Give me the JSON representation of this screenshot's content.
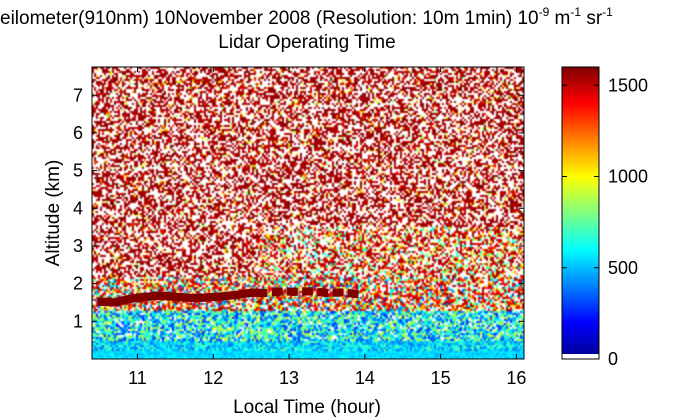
{
  "chart_data": {
    "type": "heatmap",
    "title_main": "eilometer(910nm) 10November 2008 (Resolution: 10m 1min) 10",
    "title_exp1": "-9",
    "title_mid": " m",
    "title_exp2": "-1",
    "title_end": " sr",
    "title_exp3": "-1",
    "subtitle": "Lidar Operating Time",
    "xlabel": "Local Time (hour)",
    "ylabel": "Altitude (km)",
    "xlim": [
      10.4,
      16.1
    ],
    "ylim": [
      0,
      7.75
    ],
    "xticks": [
      "11",
      "12",
      "13",
      "14",
      "15",
      "16"
    ],
    "yticks": [
      "1",
      "2",
      "3",
      "4",
      "5",
      "6",
      "7"
    ],
    "colorbar": {
      "range": [
        0,
        1600
      ],
      "ticks": [
        "0",
        "500",
        "1000",
        "1500"
      ],
      "colormap": "jet"
    },
    "cloud_layer": {
      "x": [
        10.5,
        10.7,
        10.9,
        11.1,
        11.3,
        11.5,
        11.7,
        11.9,
        12.1,
        12.3,
        12.5,
        12.7,
        12.9,
        13.1,
        13.3,
        13.5,
        13.7,
        13.9
      ],
      "y": [
        1.52,
        1.5,
        1.6,
        1.65,
        1.68,
        1.65,
        1.62,
        1.63,
        1.66,
        1.7,
        1.76,
        1.75,
        1.8,
        1.78,
        1.8,
        1.75,
        1.77,
        1.72
      ]
    }
  }
}
